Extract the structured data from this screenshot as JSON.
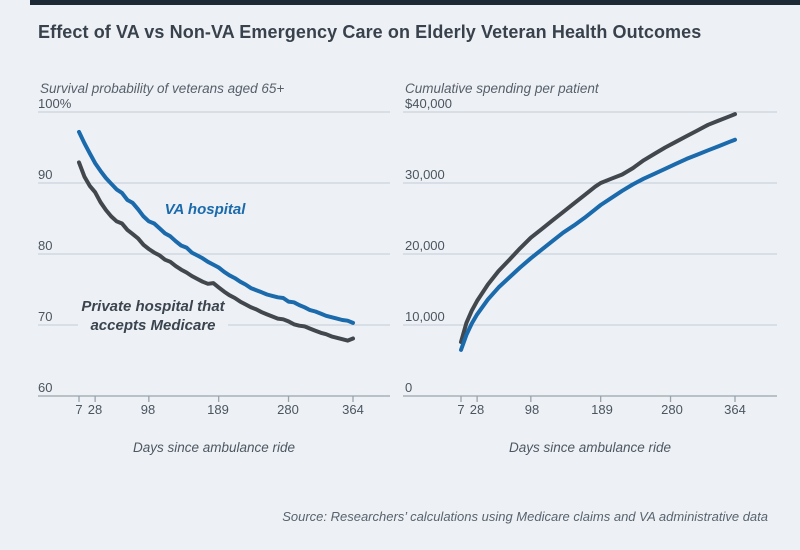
{
  "title": "Effect of VA vs Non-VA Emergency Care on Elderly Veteran Health Outcomes",
  "source_note": "Source: Researchers’ calculations using Medicare claims and VA administrative data",
  "colors": {
    "va_blue": "#1a6aac",
    "private_gray": "#41474d",
    "grid": "#c4ccd4",
    "axis": "#99a3ac",
    "background": "#edf1f6",
    "top_bar": "#1d2935",
    "title_text": "#39424c"
  },
  "charts": {
    "left": {
      "subtitle": "Survival probability of veterans aged 65+",
      "x_label": "Days since ambulance ride",
      "y_tick_labels": [
        "100%",
        "90",
        "80",
        "70",
        "60"
      ],
      "x_tick_labels": [
        "7",
        "28",
        "98",
        "189",
        "280",
        "364"
      ],
      "series_labels": {
        "va": "VA hospital",
        "private_line1": "Private hospital that",
        "private_line2": "accepts Medicare"
      }
    },
    "right": {
      "subtitle": "Cumulative spending per patient",
      "x_label": "Days since ambulance ride",
      "y_tick_labels": [
        "$40,000",
        "30,000",
        "20,000",
        "10,000",
        "0"
      ],
      "x_tick_labels": [
        "7",
        "28",
        "98",
        "189",
        "280",
        "364"
      ]
    }
  },
  "chart_data": [
    {
      "type": "line",
      "title": "Survival probability of veterans aged 65+",
      "xlabel": "Days since ambulance ride",
      "ylabel": "Survival probability (%)",
      "xlim": [
        7,
        364
      ],
      "ylim": [
        60,
        100
      ],
      "x_ticks": [
        7,
        28,
        98,
        189,
        280,
        364
      ],
      "y_ticks": [
        100,
        90,
        80,
        70,
        60
      ],
      "grid": true,
      "legend_position": "inline-annotations",
      "series": [
        {
          "name": "VA hospital",
          "color": "#1a6aac",
          "x": [
            7,
            14,
            21,
            28,
            35,
            42,
            49,
            56,
            63,
            70,
            77,
            84,
            91,
            98,
            105,
            112,
            119,
            126,
            133,
            140,
            147,
            154,
            161,
            168,
            175,
            182,
            189,
            196,
            203,
            210,
            217,
            224,
            231,
            238,
            245,
            252,
            259,
            266,
            273,
            280,
            287,
            294,
            301,
            308,
            315,
            322,
            329,
            336,
            343,
            350,
            357,
            364
          ],
          "y": [
            97.2,
            95.6,
            94.2,
            92.8,
            91.7,
            90.7,
            89.9,
            89.1,
            88.6,
            87.6,
            87.2,
            86.3,
            85.3,
            84.6,
            84.3,
            83.6,
            82.9,
            82.5,
            81.8,
            81.2,
            80.9,
            80.2,
            79.8,
            79.4,
            78.9,
            78.5,
            78.1,
            77.5,
            77.0,
            76.6,
            76.1,
            75.7,
            75.2,
            74.9,
            74.6,
            74.3,
            74.1,
            73.9,
            73.8,
            73.3,
            73.2,
            72.8,
            72.5,
            72.1,
            71.9,
            71.6,
            71.3,
            71.1,
            70.9,
            70.7,
            70.6,
            70.3
          ]
        },
        {
          "name": "Private hospital that accepts Medicare",
          "color": "#41474d",
          "x": [
            7,
            14,
            21,
            28,
            35,
            42,
            49,
            56,
            63,
            70,
            77,
            84,
            91,
            98,
            105,
            112,
            119,
            126,
            133,
            140,
            147,
            154,
            161,
            168,
            175,
            182,
            189,
            196,
            203,
            210,
            217,
            224,
            231,
            238,
            245,
            252,
            259,
            266,
            273,
            280,
            287,
            294,
            301,
            308,
            315,
            322,
            329,
            336,
            343,
            350,
            357,
            364
          ],
          "y": [
            92.9,
            90.9,
            89.6,
            88.7,
            87.3,
            86.2,
            85.3,
            84.6,
            84.3,
            83.4,
            82.8,
            82.2,
            81.3,
            80.7,
            80.2,
            79.8,
            79.2,
            78.9,
            78.3,
            77.8,
            77.4,
            76.9,
            76.5,
            76.1,
            75.8,
            75.9,
            75.3,
            74.7,
            74.2,
            73.8,
            73.3,
            72.9,
            72.5,
            72.2,
            71.8,
            71.5,
            71.2,
            70.9,
            70.8,
            70.5,
            70.1,
            69.9,
            69.8,
            69.5,
            69.2,
            68.9,
            68.7,
            68.4,
            68.2,
            68.0,
            67.8,
            68.1
          ]
        }
      ]
    },
    {
      "type": "line",
      "title": "Cumulative spending per patient",
      "xlabel": "Days since ambulance ride",
      "ylabel": "Cumulative spending ($)",
      "xlim": [
        7,
        364
      ],
      "ylim": [
        0,
        40000
      ],
      "x_ticks": [
        7,
        28,
        98,
        189,
        280,
        364
      ],
      "y_ticks": [
        40000,
        30000,
        20000,
        10000,
        0
      ],
      "grid": true,
      "legend_position": "none",
      "series": [
        {
          "name": "Private hospital that accepts Medicare",
          "color": "#41474d",
          "x": [
            7,
            14,
            21,
            28,
            42,
            56,
            70,
            84,
            98,
            112,
            126,
            140,
            154,
            168,
            182,
            189,
            203,
            217,
            231,
            245,
            259,
            273,
            287,
            301,
            315,
            329,
            343,
            357,
            364
          ],
          "y": [
            7600,
            10300,
            12000,
            13400,
            15700,
            17600,
            19200,
            20800,
            22300,
            23500,
            24700,
            25900,
            27100,
            28300,
            29500,
            30000,
            30600,
            31200,
            32100,
            33200,
            34100,
            35000,
            35800,
            36600,
            37400,
            38200,
            38800,
            39400,
            39700
          ]
        },
        {
          "name": "VA hospital",
          "color": "#1a6aac",
          "x": [
            7,
            14,
            21,
            28,
            42,
            56,
            70,
            84,
            98,
            112,
            126,
            140,
            154,
            168,
            182,
            189,
            203,
            217,
            231,
            245,
            259,
            273,
            287,
            301,
            315,
            329,
            343,
            357,
            364
          ],
          "y": [
            6500,
            8600,
            10200,
            11500,
            13600,
            15300,
            16700,
            18100,
            19400,
            20600,
            21800,
            23000,
            24000,
            25100,
            26300,
            26900,
            27900,
            28900,
            29800,
            30600,
            31300,
            32000,
            32700,
            33400,
            34000,
            34600,
            35200,
            35800,
            36100
          ]
        }
      ]
    }
  ]
}
